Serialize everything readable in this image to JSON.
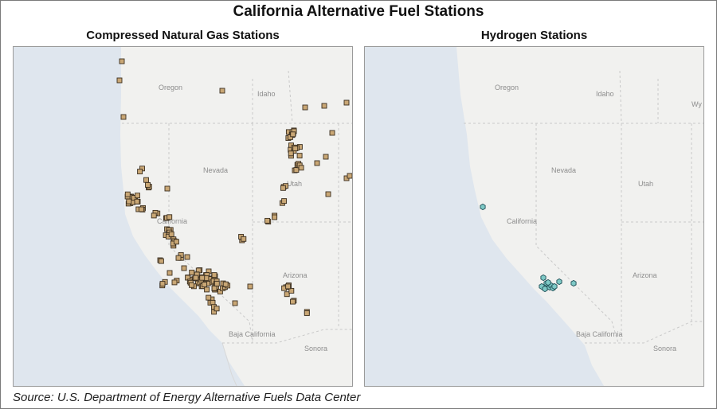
{
  "title": "California Alternative Fuel Stations",
  "source": "Source: U.S. Department of Energy Alternative Fuels Data Center",
  "colors": {
    "ocean": "#dfe6ee",
    "land": "#f1f1ef",
    "border": "#c9c9c9",
    "cng_marker": "#c9a775",
    "cng_marker_stroke": "#3b2f20",
    "h2_marker": "#7ec9c6",
    "h2_marker_stroke": "#1f4f57"
  },
  "panels": [
    {
      "title": "Compressed Natural Gas Stations",
      "marker": "square",
      "labels": [
        "Oregon",
        "Idaho",
        "Nevada",
        "Utah",
        "California",
        "Arizona",
        "Baja California",
        "Sonora"
      ],
      "station_count": 250
    },
    {
      "title": "Hydrogen Stations",
      "marker": "hexagon",
      "labels": [
        "Oregon",
        "Idaho",
        "Wy",
        "Nevada",
        "Utah",
        "California",
        "Arizona",
        "Baja California",
        "Sonora"
      ],
      "station_count": 12
    }
  ]
}
